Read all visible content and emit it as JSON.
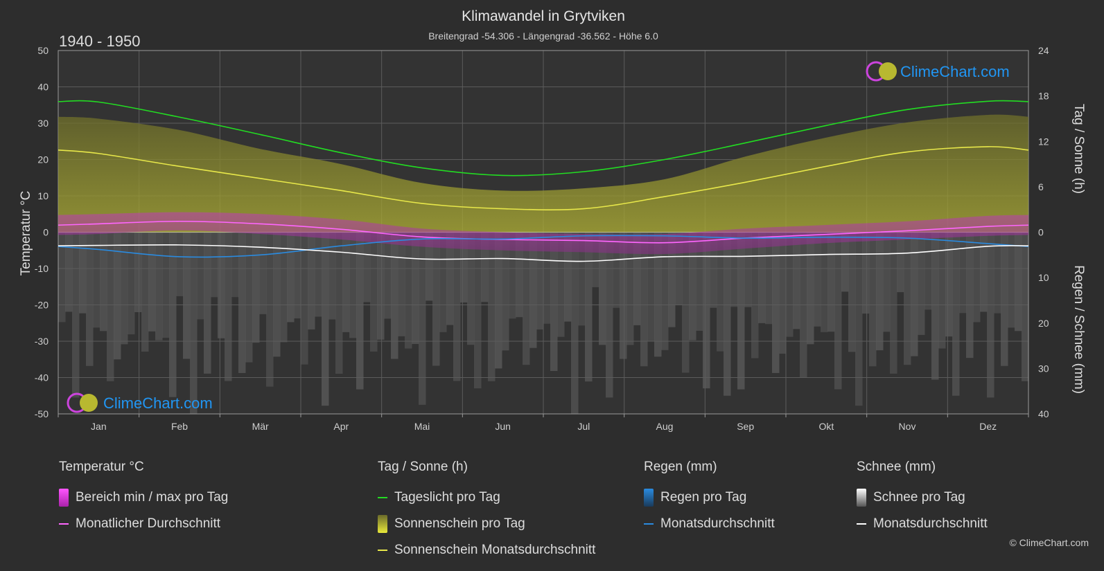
{
  "title": "Klimawandel in Grytviken",
  "subtitle": "Breitengrad -54.306 - Längengrad -36.562 - Höhe 6.0",
  "period": "1940 - 1950",
  "brand": "ClimeChart.com",
  "copyright": "© ClimeChart.com",
  "colors": {
    "daylight": "#22dd22",
    "sunshine_avg": "#e8e84a",
    "sunshine_fill": "#9a9a2a",
    "temp_avg": "#ff66ff",
    "temp_range": "#cc22cc",
    "rain_avg": "#2a8be0",
    "snow_avg": "#ffffff",
    "brand": "#2196f3"
  },
  "chart_data": {
    "type": "line",
    "title": "Klimawandel in Grytviken",
    "subtitle": "Breitengrad -54.306 - Längengrad -36.562 - Höhe 6.0",
    "categories": [
      "Jan",
      "Feb",
      "Mär",
      "Apr",
      "Mai",
      "Jun",
      "Jul",
      "Aug",
      "Sep",
      "Okt",
      "Nov",
      "Dez"
    ],
    "axes": {
      "left": {
        "label": "Temperatur °C",
        "range": [
          -50,
          50
        ],
        "ticks": [
          50,
          40,
          30,
          20,
          10,
          0,
          -10,
          -20,
          -30,
          -40,
          -50
        ]
      },
      "right_top": {
        "label": "Tag / Sonne (h)",
        "range": [
          0,
          24
        ],
        "ticks": [
          24,
          18,
          12,
          6,
          0
        ]
      },
      "right_bottom": {
        "label": "Regen / Schnee (mm)",
        "range": [
          0,
          40
        ],
        "ticks": [
          0,
          10,
          20,
          30,
          40
        ]
      }
    },
    "grid": true,
    "series": [
      {
        "name": "Tageslicht pro Tag",
        "unit": "h",
        "values": [
          17.2,
          15.2,
          12.9,
          10.5,
          8.5,
          7.5,
          8.0,
          9.6,
          11.8,
          14.1,
          16.2,
          17.3
        ]
      },
      {
        "name": "Sonnenschein Monatsdurchschnitt",
        "unit": "h",
        "values": [
          10.4,
          8.7,
          7.1,
          5.5,
          3.8,
          3.1,
          3.1,
          4.7,
          6.6,
          8.7,
          10.6,
          11.3
        ]
      },
      {
        "name": "Sonnenschein pro Tag (Bereich)",
        "unit": "h",
        "values": [
          15.0,
          13.5,
          11.0,
          9.0,
          6.5,
          5.5,
          5.8,
          7.0,
          10.0,
          12.5,
          14.5,
          15.5
        ]
      },
      {
        "name": "Monatlicher Durchschnitt",
        "unit": "°C",
        "values": [
          2.3,
          3.0,
          2.3,
          0.8,
          -1.3,
          -2.0,
          -2.3,
          -2.9,
          -1.6,
          -0.6,
          0.4,
          1.6
        ]
      },
      {
        "name": "Bereich min / max pro Tag (max)",
        "unit": "°C",
        "values": [
          5.0,
          5.5,
          5.0,
          3.5,
          1.0,
          0.0,
          -0.5,
          -0.5,
          1.0,
          2.0,
          3.0,
          4.5
        ]
      },
      {
        "name": "Bereich min / max pro Tag (min)",
        "unit": "°C",
        "values": [
          -0.5,
          0.5,
          -0.5,
          -2.0,
          -4.0,
          -5.0,
          -5.5,
          -6.0,
          -4.5,
          -3.0,
          -2.0,
          -1.0
        ]
      },
      {
        "name": "Regen Monatsdurchschnitt",
        "unit": "mm",
        "values": [
          3.8,
          5.4,
          5.0,
          3.0,
          1.5,
          1.5,
          0.8,
          0.8,
          1.3,
          1.1,
          1.3,
          2.5
        ]
      },
      {
        "name": "Schnee Monatsdurchschnitt",
        "unit": "mm",
        "values": [
          2.9,
          2.8,
          3.3,
          4.4,
          5.9,
          5.8,
          6.4,
          5.4,
          5.3,
          4.9,
          4.6,
          3.1
        ]
      }
    ]
  },
  "legend": {
    "temperature": {
      "title": "Temperatur °C",
      "items": [
        "Bereich min / max pro Tag",
        "Monatlicher Durchschnitt"
      ]
    },
    "sun": {
      "title": "Tag / Sonne (h)",
      "items": [
        "Tageslicht pro Tag",
        "Sonnenschein pro Tag",
        "Sonnenschein Monatsdurchschnitt"
      ]
    },
    "rain": {
      "title": "Regen (mm)",
      "items": [
        "Regen pro Tag",
        "Monatsdurchschnitt"
      ]
    },
    "snow": {
      "title": "Schnee (mm)",
      "items": [
        "Schnee pro Tag",
        "Monatsdurchschnitt"
      ]
    }
  }
}
